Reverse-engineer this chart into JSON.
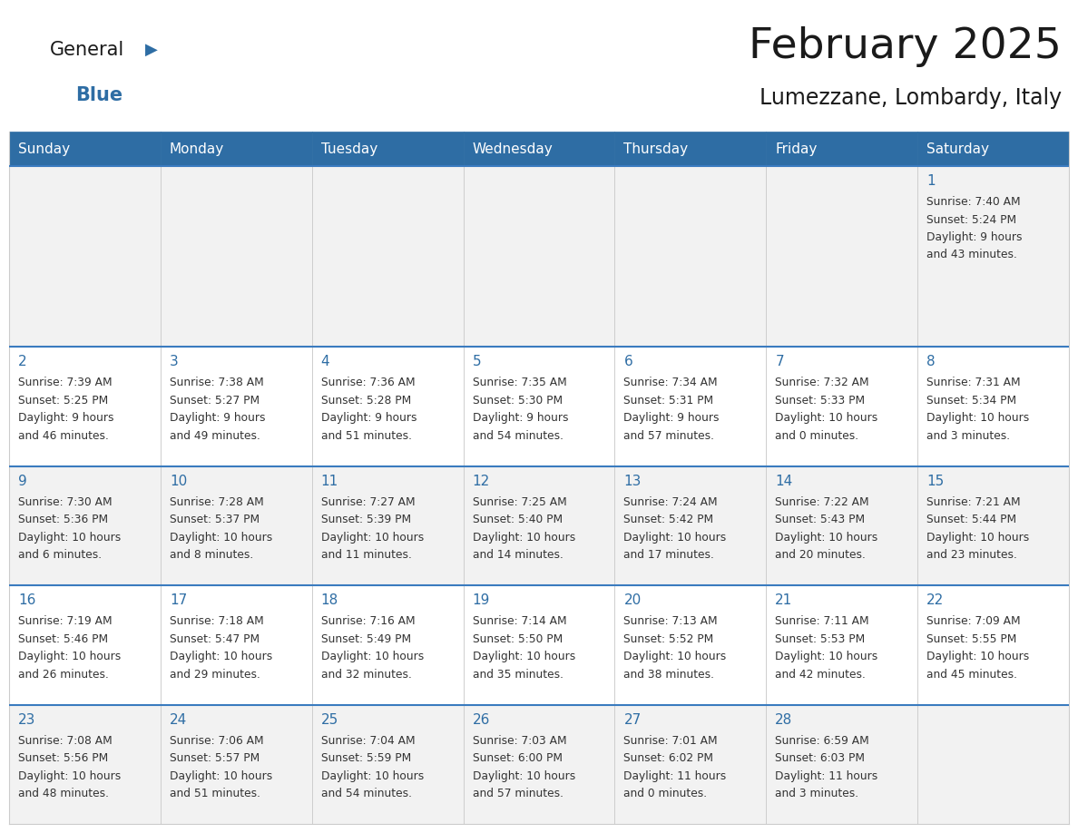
{
  "title": "February 2025",
  "subtitle": "Lumezzane, Lombardy, Italy",
  "days_of_week": [
    "Sunday",
    "Monday",
    "Tuesday",
    "Wednesday",
    "Thursday",
    "Friday",
    "Saturday"
  ],
  "header_bg": "#2E6DA4",
  "header_text": "#FFFFFF",
  "cell_bg_gray": "#F2F2F2",
  "cell_bg_white": "#FFFFFF",
  "text_color": "#333333",
  "day_number_color": "#2E6DA4",
  "border_color": "#CCCCCC",
  "row_border_color": "#3A7BBF",
  "logo_general_color": "#1a1a1a",
  "logo_blue_color": "#2E6DA4",
  "calendar_data": [
    [
      null,
      null,
      null,
      null,
      null,
      null,
      {
        "day": 1,
        "sunrise": "7:40 AM",
        "sunset": "5:24 PM",
        "daylight_line1": "Daylight: 9 hours",
        "daylight_line2": "and 43 minutes."
      }
    ],
    [
      {
        "day": 2,
        "sunrise": "7:39 AM",
        "sunset": "5:25 PM",
        "daylight_line1": "Daylight: 9 hours",
        "daylight_line2": "and 46 minutes."
      },
      {
        "day": 3,
        "sunrise": "7:38 AM",
        "sunset": "5:27 PM",
        "daylight_line1": "Daylight: 9 hours",
        "daylight_line2": "and 49 minutes."
      },
      {
        "day": 4,
        "sunrise": "7:36 AM",
        "sunset": "5:28 PM",
        "daylight_line1": "Daylight: 9 hours",
        "daylight_line2": "and 51 minutes."
      },
      {
        "day": 5,
        "sunrise": "7:35 AM",
        "sunset": "5:30 PM",
        "daylight_line1": "Daylight: 9 hours",
        "daylight_line2": "and 54 minutes."
      },
      {
        "day": 6,
        "sunrise": "7:34 AM",
        "sunset": "5:31 PM",
        "daylight_line1": "Daylight: 9 hours",
        "daylight_line2": "and 57 minutes."
      },
      {
        "day": 7,
        "sunrise": "7:32 AM",
        "sunset": "5:33 PM",
        "daylight_line1": "Daylight: 10 hours",
        "daylight_line2": "and 0 minutes."
      },
      {
        "day": 8,
        "sunrise": "7:31 AM",
        "sunset": "5:34 PM",
        "daylight_line1": "Daylight: 10 hours",
        "daylight_line2": "and 3 minutes."
      }
    ],
    [
      {
        "day": 9,
        "sunrise": "7:30 AM",
        "sunset": "5:36 PM",
        "daylight_line1": "Daylight: 10 hours",
        "daylight_line2": "and 6 minutes."
      },
      {
        "day": 10,
        "sunrise": "7:28 AM",
        "sunset": "5:37 PM",
        "daylight_line1": "Daylight: 10 hours",
        "daylight_line2": "and 8 minutes."
      },
      {
        "day": 11,
        "sunrise": "7:27 AM",
        "sunset": "5:39 PM",
        "daylight_line1": "Daylight: 10 hours",
        "daylight_line2": "and 11 minutes."
      },
      {
        "day": 12,
        "sunrise": "7:25 AM",
        "sunset": "5:40 PM",
        "daylight_line1": "Daylight: 10 hours",
        "daylight_line2": "and 14 minutes."
      },
      {
        "day": 13,
        "sunrise": "7:24 AM",
        "sunset": "5:42 PM",
        "daylight_line1": "Daylight: 10 hours",
        "daylight_line2": "and 17 minutes."
      },
      {
        "day": 14,
        "sunrise": "7:22 AM",
        "sunset": "5:43 PM",
        "daylight_line1": "Daylight: 10 hours",
        "daylight_line2": "and 20 minutes."
      },
      {
        "day": 15,
        "sunrise": "7:21 AM",
        "sunset": "5:44 PM",
        "daylight_line1": "Daylight: 10 hours",
        "daylight_line2": "and 23 minutes."
      }
    ],
    [
      {
        "day": 16,
        "sunrise": "7:19 AM",
        "sunset": "5:46 PM",
        "daylight_line1": "Daylight: 10 hours",
        "daylight_line2": "and 26 minutes."
      },
      {
        "day": 17,
        "sunrise": "7:18 AM",
        "sunset": "5:47 PM",
        "daylight_line1": "Daylight: 10 hours",
        "daylight_line2": "and 29 minutes."
      },
      {
        "day": 18,
        "sunrise": "7:16 AM",
        "sunset": "5:49 PM",
        "daylight_line1": "Daylight: 10 hours",
        "daylight_line2": "and 32 minutes."
      },
      {
        "day": 19,
        "sunrise": "7:14 AM",
        "sunset": "5:50 PM",
        "daylight_line1": "Daylight: 10 hours",
        "daylight_line2": "and 35 minutes."
      },
      {
        "day": 20,
        "sunrise": "7:13 AM",
        "sunset": "5:52 PM",
        "daylight_line1": "Daylight: 10 hours",
        "daylight_line2": "and 38 minutes."
      },
      {
        "day": 21,
        "sunrise": "7:11 AM",
        "sunset": "5:53 PM",
        "daylight_line1": "Daylight: 10 hours",
        "daylight_line2": "and 42 minutes."
      },
      {
        "day": 22,
        "sunrise": "7:09 AM",
        "sunset": "5:55 PM",
        "daylight_line1": "Daylight: 10 hours",
        "daylight_line2": "and 45 minutes."
      }
    ],
    [
      {
        "day": 23,
        "sunrise": "7:08 AM",
        "sunset": "5:56 PM",
        "daylight_line1": "Daylight: 10 hours",
        "daylight_line2": "and 48 minutes."
      },
      {
        "day": 24,
        "sunrise": "7:06 AM",
        "sunset": "5:57 PM",
        "daylight_line1": "Daylight: 10 hours",
        "daylight_line2": "and 51 minutes."
      },
      {
        "day": 25,
        "sunrise": "7:04 AM",
        "sunset": "5:59 PM",
        "daylight_line1": "Daylight: 10 hours",
        "daylight_line2": "and 54 minutes."
      },
      {
        "day": 26,
        "sunrise": "7:03 AM",
        "sunset": "6:00 PM",
        "daylight_line1": "Daylight: 10 hours",
        "daylight_line2": "and 57 minutes."
      },
      {
        "day": 27,
        "sunrise": "7:01 AM",
        "sunset": "6:02 PM",
        "daylight_line1": "Daylight: 11 hours",
        "daylight_line2": "and 0 minutes."
      },
      {
        "day": 28,
        "sunrise": "6:59 AM",
        "sunset": "6:03 PM",
        "daylight_line1": "Daylight: 11 hours",
        "daylight_line2": "and 3 minutes."
      },
      null
    ]
  ],
  "figwidth": 11.88,
  "figheight": 9.18,
  "dpi": 100
}
